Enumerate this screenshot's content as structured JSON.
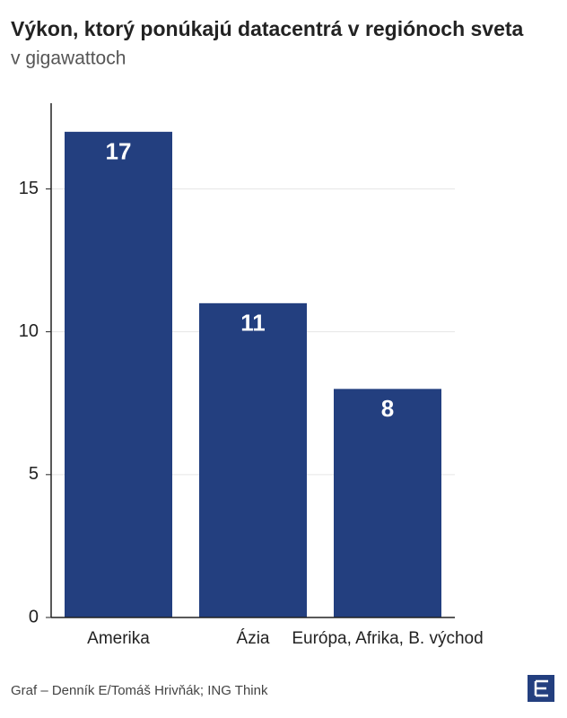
{
  "chart_data": {
    "type": "bar",
    "title": "Výkon, ktorý ponúkajú datacentrá v regiónoch sveta",
    "subtitle": "v gigawattoch",
    "categories": [
      "Amerika",
      "Ázia",
      "Európa, Afrika, B. východ"
    ],
    "values": [
      17,
      11,
      8
    ],
    "color": "#233f7f",
    "ylim": [
      0,
      18
    ],
    "yticks": [
      0,
      5,
      10,
      15
    ],
    "grid": true,
    "source": "Graf – Denník E/Tomáš Hrivňák; ING Think"
  }
}
